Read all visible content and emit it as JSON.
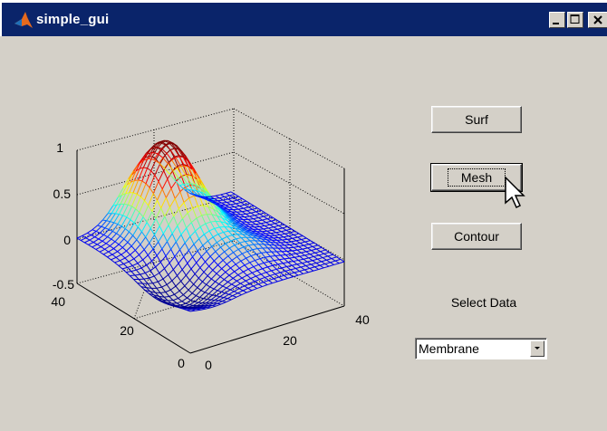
{
  "window": {
    "title": "simple_gui",
    "controls": {
      "minimize_icon": "minimize-icon",
      "maximize_icon": "maximize-icon",
      "close_icon": "close-icon"
    }
  },
  "plot": {
    "z_ticks": [
      "1",
      "0.5",
      "0",
      "-0.5"
    ],
    "y_ticks": [
      "40",
      "20",
      "0"
    ],
    "x_ticks": [
      "0",
      "20",
      "40"
    ],
    "colormap": [
      "#00008f",
      "#0000ff",
      "#00ffff",
      "#ffff00",
      "#ff0000",
      "#800000"
    ]
  },
  "buttons": {
    "surf": "Surf",
    "mesh": "Mesh",
    "contour": "Contour"
  },
  "select_data": {
    "label": "Select Data",
    "selected": "Membrane"
  },
  "colors": {
    "titlebar": "#0a246a",
    "window_bg": "#d4d0c8"
  }
}
